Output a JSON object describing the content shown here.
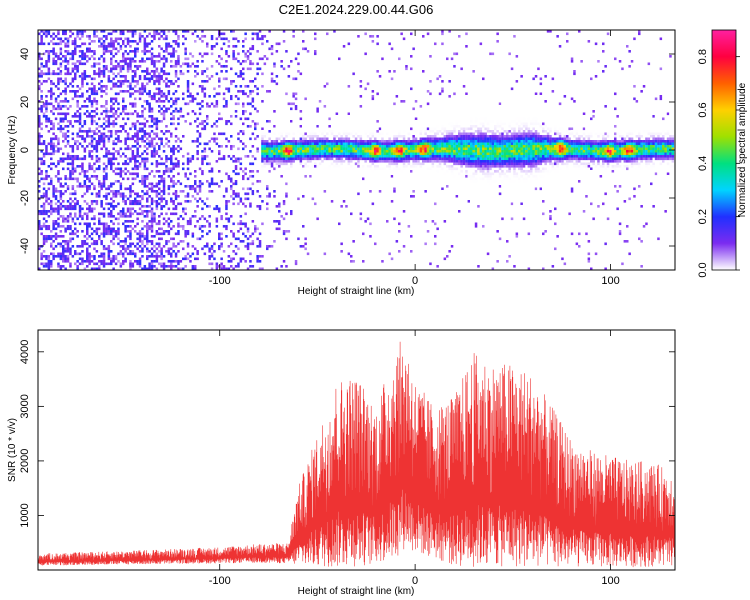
{
  "title": "C2E1.2024.229.00.44.G06",
  "chart_data": [
    {
      "type": "heatmap",
      "title": "C2E1.2024.229.00.44.G06",
      "xlabel": "Height of straight line (km)",
      "ylabel": "Frequency (Hz)",
      "xlim": [
        -193,
        133
      ],
      "ylim": [
        -50,
        50
      ],
      "x_ticks": [
        -100,
        0,
        100
      ],
      "y_ticks": [
        -40,
        -20,
        0,
        20,
        40
      ],
      "colorbar": {
        "label": "Normalized spectral amplitude",
        "range": [
          0,
          0.9
        ],
        "ticks": [
          0,
          0.2,
          0.4,
          0.6,
          0.8
        ],
        "palette": [
          "#ffffff",
          "#7b2cf0",
          "#2030ff",
          "#00d4ff",
          "#00e080",
          "#a0e000",
          "#ffd000",
          "#ff6000",
          "#ff0040",
          "#ff20a0"
        ]
      },
      "noise_region_x": [
        -193,
        -78
      ],
      "signal_band_x": [
        -78,
        133
      ],
      "signal_band_center_hz": 0,
      "peak_amplitude_positions_km": [
        -65,
        -20,
        -8,
        5,
        75,
        100,
        110
      ]
    },
    {
      "type": "line",
      "xlabel": "Height of straight line (km)",
      "ylabel": "SNR (10 * v/v)",
      "xlim": [
        -193,
        133
      ],
      "ylim": [
        0,
        4400
      ],
      "x_ticks": [
        -100,
        0,
        100
      ],
      "y_ticks": [
        1000,
        2000,
        3000,
        4000
      ],
      "line_color": "#ee3333",
      "envelope_x": [
        -193,
        -150,
        -100,
        -80,
        -65,
        -60,
        -50,
        -40,
        -30,
        -20,
        -10,
        -5,
        0,
        10,
        20,
        30,
        40,
        50,
        60,
        70,
        80,
        90,
        100,
        110,
        120,
        133
      ],
      "envelope_max": [
        300,
        350,
        420,
        480,
        500,
        1500,
        2500,
        3500,
        3600,
        3000,
        4100,
        4300,
        3500,
        3000,
        3200,
        4000,
        3800,
        3800,
        3600,
        3000,
        2400,
        2200,
        2100,
        2000,
        2000,
        1800
      ],
      "envelope_min": [
        80,
        100,
        120,
        130,
        120,
        80,
        50,
        40,
        60,
        100,
        200,
        400,
        300,
        200,
        60,
        40,
        60,
        50,
        40,
        40,
        50,
        60,
        50,
        50,
        60,
        60
      ]
    }
  ]
}
